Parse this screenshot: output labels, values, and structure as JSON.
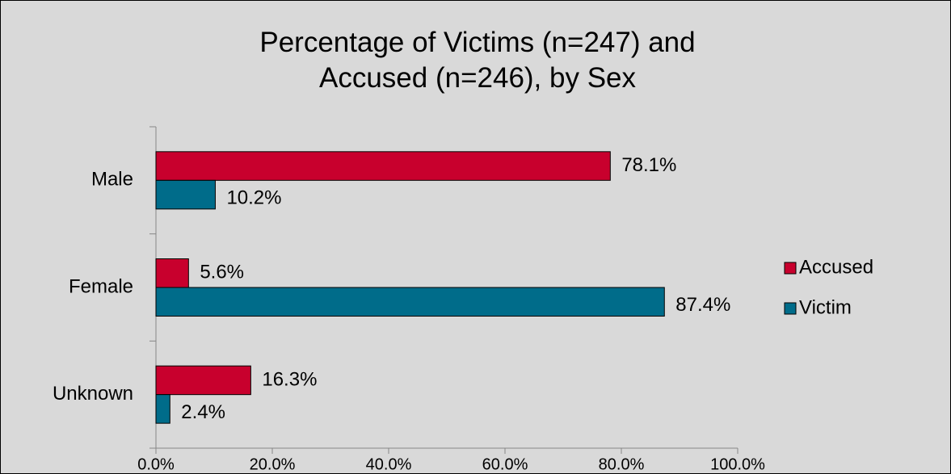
{
  "chart_data": {
    "type": "barh",
    "title": "Percentage of Victims (n=247) and Accused (n=246), by Sex",
    "categories": [
      "Male",
      "Female",
      "Unknown"
    ],
    "series": [
      {
        "name": "Accused",
        "color": "#c8002d",
        "values": [
          78.1,
          5.6,
          16.3
        ],
        "value_labels": [
          "78.1%",
          "5.6%",
          "16.3%"
        ]
      },
      {
        "name": "Victim",
        "color": "#006c8a",
        "values": [
          10.2,
          87.4,
          2.4
        ],
        "value_labels": [
          "10.2%",
          "87.4%",
          "2.4%"
        ]
      }
    ],
    "xlim": [
      0,
      100
    ],
    "xticks": [
      {
        "value": 0,
        "label": "0.0%"
      },
      {
        "value": 20,
        "label": "20.0%"
      },
      {
        "value": 40,
        "label": "40.0%"
      },
      {
        "value": 60,
        "label": "60.0%"
      },
      {
        "value": 80,
        "label": "80.0%"
      },
      {
        "value": 100,
        "label": "100.0%"
      }
    ],
    "grid": false,
    "legend": "right"
  }
}
